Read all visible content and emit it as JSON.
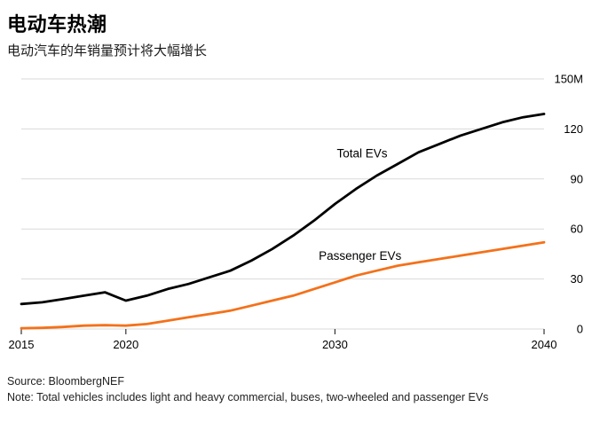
{
  "header": {
    "title": "电动车热潮",
    "subtitle": "电动汽车的年销量预计将大幅增长"
  },
  "footer": {
    "source": "Source: BloombergNEF",
    "note": "Note: Total vehicles includes light and heavy commercial, buses, two-wheeled and passenger EVs"
  },
  "chart_data": {
    "type": "line",
    "title": "电动车热潮",
    "subtitle": "电动汽车的年销量预计将大幅增长",
    "unit": "M vehicles per year",
    "x": [
      2015,
      2016,
      2017,
      2018,
      2019,
      2020,
      2021,
      2022,
      2023,
      2024,
      2025,
      2026,
      2027,
      2028,
      2029,
      2030,
      2031,
      2032,
      2033,
      2034,
      2035,
      2036,
      2037,
      2038,
      2039,
      2040
    ],
    "series": [
      {
        "name": "Total EVs",
        "color": "#000000",
        "width": 2.8,
        "label_at": [
          2031.3,
          103
        ],
        "values": [
          15,
          16,
          18,
          20,
          22,
          17,
          20,
          24,
          27,
          31,
          35,
          41,
          48,
          56,
          65,
          75,
          84,
          92,
          99,
          106,
          111,
          116,
          120,
          124,
          127,
          129
        ]
      },
      {
        "name": "Passenger EVs",
        "color": "#f4711a",
        "width": 2.8,
        "label_at": [
          2031.2,
          41.5
        ],
        "values": [
          0.4,
          0.7,
          1.2,
          2,
          2.3,
          2,
          3,
          5,
          7,
          9,
          11,
          14,
          17,
          20,
          24,
          28,
          32,
          35,
          38,
          40,
          42,
          44,
          46,
          48,
          50,
          52
        ]
      }
    ],
    "xlim": [
      2015,
      2040
    ],
    "ylim": [
      0,
      150
    ],
    "xticks": [
      2015,
      2020,
      2030,
      2040
    ],
    "yticks": [
      0,
      30,
      60,
      90,
      120,
      150
    ],
    "ytick_labels": [
      "0",
      "30",
      "60",
      "90",
      "120",
      "150M"
    ],
    "grid": "horizontal",
    "legend_position": "inline-labels",
    "y_axis_side": "right",
    "gridline_color": "#d9d9d9",
    "tick_color": "#333333",
    "source": "Source: BloombergNEF",
    "note": "Note: Total vehicles includes light and heavy commercial, buses, two-wheeled and passenger EVs"
  }
}
